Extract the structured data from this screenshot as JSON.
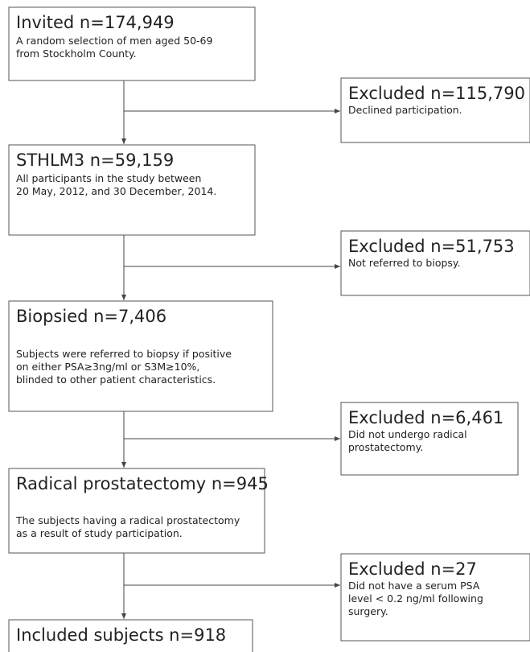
{
  "nodes": [
    {
      "title": "Invited n=174,949",
      "lines": [
        "A random selection of men aged 50-69",
        "from Stockholm County."
      ]
    },
    {
      "title": "STHLM3 n=59,159",
      "lines": [
        "All participants in the study between",
        "20 May, 2012, and 30 December, 2014."
      ]
    },
    {
      "title": "Biopsied n=7,406",
      "lines": [
        "Subjects were referred to biopsy if positive",
        "on either PSA≥3ng/ml or S3M≥10%,",
        "blinded to other patient characteristics."
      ]
    },
    {
      "title": "Radical prostatectomy n=945",
      "lines": [
        "The subjects having a radical prostatectomy",
        "as a result of study participation."
      ]
    },
    {
      "title": "Included subjects n=918",
      "lines": []
    }
  ],
  "excluded": [
    {
      "title": "Excluded n=115,790",
      "lines": [
        "Declined participation."
      ]
    },
    {
      "title": "Excluded n=51,753",
      "lines": [
        "Not referred to biopsy."
      ]
    },
    {
      "title": "Excluded n=6,461",
      "lines": [
        "Did not undergo radical",
        "prostatectomy."
      ]
    },
    {
      "title": "Excluded n=27",
      "lines": [
        "Did not have a serum PSA",
        "level < 0.2 ng/ml following",
        "surgery."
      ]
    }
  ]
}
